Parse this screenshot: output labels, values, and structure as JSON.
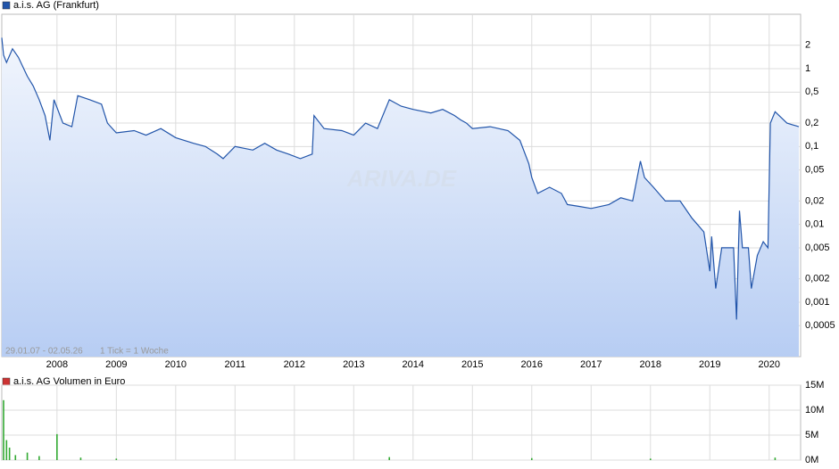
{
  "chart_data": [
    {
      "type": "line",
      "title": "a.i.s. AG (Frankfurt)",
      "log_scale": true,
      "grid": true,
      "watermark": "ARIVA.DE",
      "range_note": "29.01.07 - 02.05.26",
      "tick_note": "1 Tick = 1 Woche",
      "xlim": [
        2007.07,
        2020.53
      ],
      "xticks": [
        2008,
        2009,
        2010,
        2011,
        2012,
        2013,
        2014,
        2015,
        2016,
        2017,
        2018,
        2019,
        2020
      ],
      "ylim": [
        0.0002,
        5
      ],
      "yticks": [
        {
          "value": 0.0005,
          "label": "0,0005"
        },
        {
          "value": 0.001,
          "label": "0,001"
        },
        {
          "value": 0.002,
          "label": "0,002"
        },
        {
          "value": 0.005,
          "label": "0,005"
        },
        {
          "value": 0.01,
          "label": "0,01"
        },
        {
          "value": 0.02,
          "label": "0,02"
        },
        {
          "value": 0.05,
          "label": "0,05"
        },
        {
          "value": 0.1,
          "label": "0,1"
        },
        {
          "value": 0.2,
          "label": "0,2"
        },
        {
          "value": 0.5,
          "label": "0,5"
        },
        1,
        2
      ],
      "color": "#2255aa",
      "x": [
        2007.07,
        2007.1,
        2007.15,
        2007.25,
        2007.35,
        2007.5,
        2007.6,
        2007.7,
        2007.8,
        2007.88,
        2007.95,
        2008.1,
        2008.25,
        2008.35,
        2008.55,
        2008.75,
        2008.85,
        2009.0,
        2009.3,
        2009.5,
        2009.75,
        2010.0,
        2010.3,
        2010.5,
        2010.7,
        2010.8,
        2011.0,
        2011.3,
        2011.5,
        2011.7,
        2011.9,
        2012.1,
        2012.3,
        2012.33,
        2012.5,
        2012.8,
        2013.0,
        2013.2,
        2013.4,
        2013.6,
        2013.8,
        2014.0,
        2014.3,
        2014.5,
        2014.7,
        2014.8,
        2014.9,
        2015.0,
        2015.3,
        2015.6,
        2015.8,
        2015.95,
        2016.0,
        2016.1,
        2016.3,
        2016.5,
        2016.6,
        2016.8,
        2017.0,
        2017.3,
        2017.5,
        2017.7,
        2017.83,
        2017.9,
        2018.05,
        2018.25,
        2018.5,
        2018.7,
        2018.9,
        2019.0,
        2019.03,
        2019.1,
        2019.2,
        2019.4,
        2019.45,
        2019.5,
        2019.55,
        2019.65,
        2019.7,
        2019.8,
        2019.9,
        2019.98,
        2020.02,
        2020.1,
        2020.3,
        2020.5
      ],
      "values": [
        2.5,
        1.5,
        1.2,
        1.8,
        1.4,
        0.8,
        0.6,
        0.4,
        0.25,
        0.12,
        0.4,
        0.2,
        0.18,
        0.45,
        0.4,
        0.35,
        0.2,
        0.15,
        0.16,
        0.14,
        0.17,
        0.13,
        0.11,
        0.1,
        0.08,
        0.07,
        0.1,
        0.09,
        0.11,
        0.09,
        0.08,
        0.07,
        0.08,
        0.25,
        0.17,
        0.16,
        0.14,
        0.2,
        0.17,
        0.4,
        0.33,
        0.3,
        0.27,
        0.3,
        0.25,
        0.22,
        0.2,
        0.17,
        0.18,
        0.16,
        0.12,
        0.06,
        0.04,
        0.025,
        0.03,
        0.025,
        0.018,
        0.017,
        0.016,
        0.018,
        0.022,
        0.02,
        0.065,
        0.04,
        0.03,
        0.02,
        0.02,
        0.012,
        0.008,
        0.0025,
        0.007,
        0.0015,
        0.005,
        0.005,
        0.0006,
        0.015,
        0.005,
        0.005,
        0.0015,
        0.004,
        0.006,
        0.005,
        0.2,
        0.28,
        0.2,
        0.18
      ]
    },
    {
      "type": "bar",
      "title": "a.i.s. AG Volumen in Euro",
      "grid": true,
      "legend_color": "#cc3333",
      "color": "#33aa33",
      "xlim": [
        2007.07,
        2020.53
      ],
      "xticks": [
        2008,
        2009,
        2010,
        2011,
        2012,
        2013,
        2014,
        2015,
        2016,
        2017,
        2018,
        2019,
        2020
      ],
      "ylim": [
        0,
        15000000
      ],
      "yticks": [
        {
          "value": 0,
          "label": "0M"
        },
        {
          "value": 5000000,
          "label": "5M"
        },
        {
          "value": 10000000,
          "label": "10M"
        },
        {
          "value": 15000000,
          "label": "15M"
        }
      ],
      "x": [
        2007.1,
        2007.15,
        2007.2,
        2007.3,
        2007.5,
        2007.7,
        2008.0,
        2008.4,
        2009.0,
        2013.6,
        2016.0,
        2018.0,
        2020.1
      ],
      "values": [
        12000000,
        4000000,
        2500000,
        1000000,
        1500000,
        800000,
        5200000,
        500000,
        300000,
        600000,
        400000,
        300000,
        500000
      ]
    }
  ]
}
